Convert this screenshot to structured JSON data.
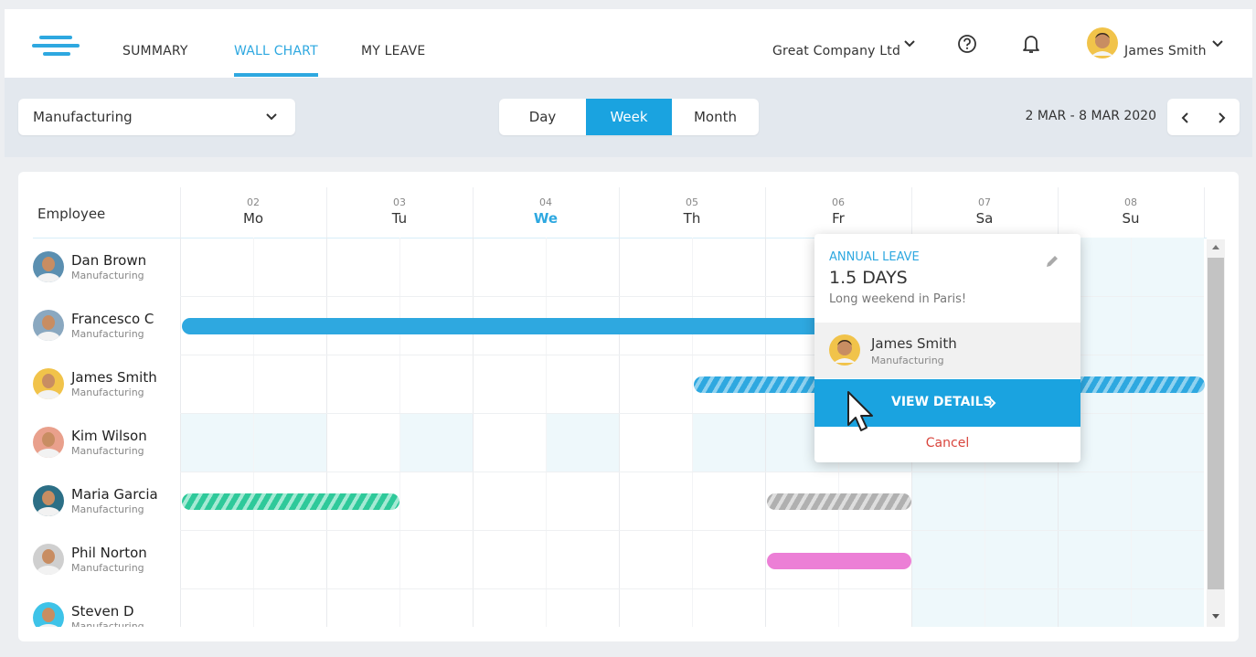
{
  "nav": {
    "tabs": [
      "SUMMARY",
      "WALL CHART",
      "MY LEAVE"
    ],
    "company": "Great Company Ltd",
    "user": "James Smith"
  },
  "toolbar": {
    "department": "Manufacturing",
    "views": [
      "Day",
      "Week",
      "Month"
    ],
    "date_range": "2 MAR - 8 MAR 2020"
  },
  "grid": {
    "employee_header": "Employee",
    "days": [
      {
        "num": "02",
        "name": "Mo"
      },
      {
        "num": "03",
        "name": "Tu"
      },
      {
        "num": "04",
        "name": "We"
      },
      {
        "num": "05",
        "name": "Th"
      },
      {
        "num": "06",
        "name": "Fr"
      },
      {
        "num": "07",
        "name": "Sa"
      },
      {
        "num": "08",
        "name": "Su"
      }
    ],
    "employees": [
      {
        "name": "Dan Brown",
        "dept": "Manufacturing"
      },
      {
        "name": "Francesco C",
        "dept": "Manufacturing"
      },
      {
        "name": "James Smith",
        "dept": "Manufacturing"
      },
      {
        "name": "Kim Wilson",
        "dept": "Manufacturing"
      },
      {
        "name": "Maria Garcia",
        "dept": "Manufacturing"
      },
      {
        "name": "Phil Norton",
        "dept": "Manufacturing"
      },
      {
        "name": "Steven D",
        "dept": "Manufacturing"
      }
    ]
  },
  "popup": {
    "type": "ANNUAL LEAVE",
    "duration": "1.5 DAYS",
    "note": "Long weekend in Paris!",
    "person": "James Smith",
    "dept": "Manufacturing",
    "action": "VIEW DETAILS",
    "cancel": "Cancel"
  }
}
